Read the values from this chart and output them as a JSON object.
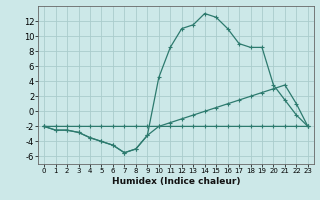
{
  "title": "",
  "xlabel": "Humidex (Indice chaleur)",
  "ylabel": "",
  "bg_color": "#cce8e8",
  "grid_color": "#aacccc",
  "line_color": "#2d7a6e",
  "xlim": [
    -0.5,
    23.5
  ],
  "ylim": [
    -7,
    14
  ],
  "yticks": [
    -6,
    -4,
    -2,
    0,
    2,
    4,
    6,
    8,
    10,
    12
  ],
  "xticks": [
    0,
    1,
    2,
    3,
    4,
    5,
    6,
    7,
    8,
    9,
    10,
    11,
    12,
    13,
    14,
    15,
    16,
    17,
    18,
    19,
    20,
    21,
    22,
    23
  ],
  "line1_x": [
    0,
    1,
    2,
    3,
    4,
    5,
    6,
    7,
    8,
    9,
    10,
    11,
    12,
    13,
    14,
    15,
    16,
    17,
    18,
    19,
    20,
    21,
    22,
    23
  ],
  "line1_y": [
    -2,
    -2.5,
    -2.5,
    -2.8,
    -3.5,
    -4.0,
    -4.5,
    -5.5,
    -5.0,
    -3.2,
    -2.0,
    -2.0,
    -2.0,
    -2.0,
    -2.0,
    -2.0,
    -2.0,
    -2.0,
    -2.0,
    -2.0,
    -2.0,
    -2.0,
    -2.0,
    -2.0
  ],
  "line2_x": [
    0,
    1,
    2,
    3,
    4,
    5,
    6,
    7,
    8,
    9,
    10,
    11,
    12,
    13,
    14,
    15,
    16,
    17,
    18,
    19,
    20,
    21,
    22,
    23
  ],
  "line2_y": [
    -2,
    -2.5,
    -2.5,
    -2.8,
    -3.5,
    -4.0,
    -4.5,
    -5.5,
    -5.0,
    -3.2,
    4.5,
    8.5,
    11.0,
    11.5,
    13.0,
    12.5,
    11.0,
    9.0,
    8.5,
    8.5,
    3.5,
    1.5,
    -0.5,
    -2.0
  ],
  "line3_x": [
    0,
    1,
    2,
    3,
    4,
    5,
    6,
    7,
    8,
    9,
    10,
    11,
    12,
    13,
    14,
    15,
    16,
    17,
    18,
    19,
    20,
    21,
    22,
    23
  ],
  "line3_y": [
    -2,
    -2,
    -2,
    -2,
    -2,
    -2,
    -2,
    -2,
    -2,
    -2,
    -2,
    -1.5,
    -1,
    -0.5,
    0,
    0.5,
    1,
    1.5,
    2,
    2.5,
    3,
    3.5,
    1,
    -2
  ]
}
